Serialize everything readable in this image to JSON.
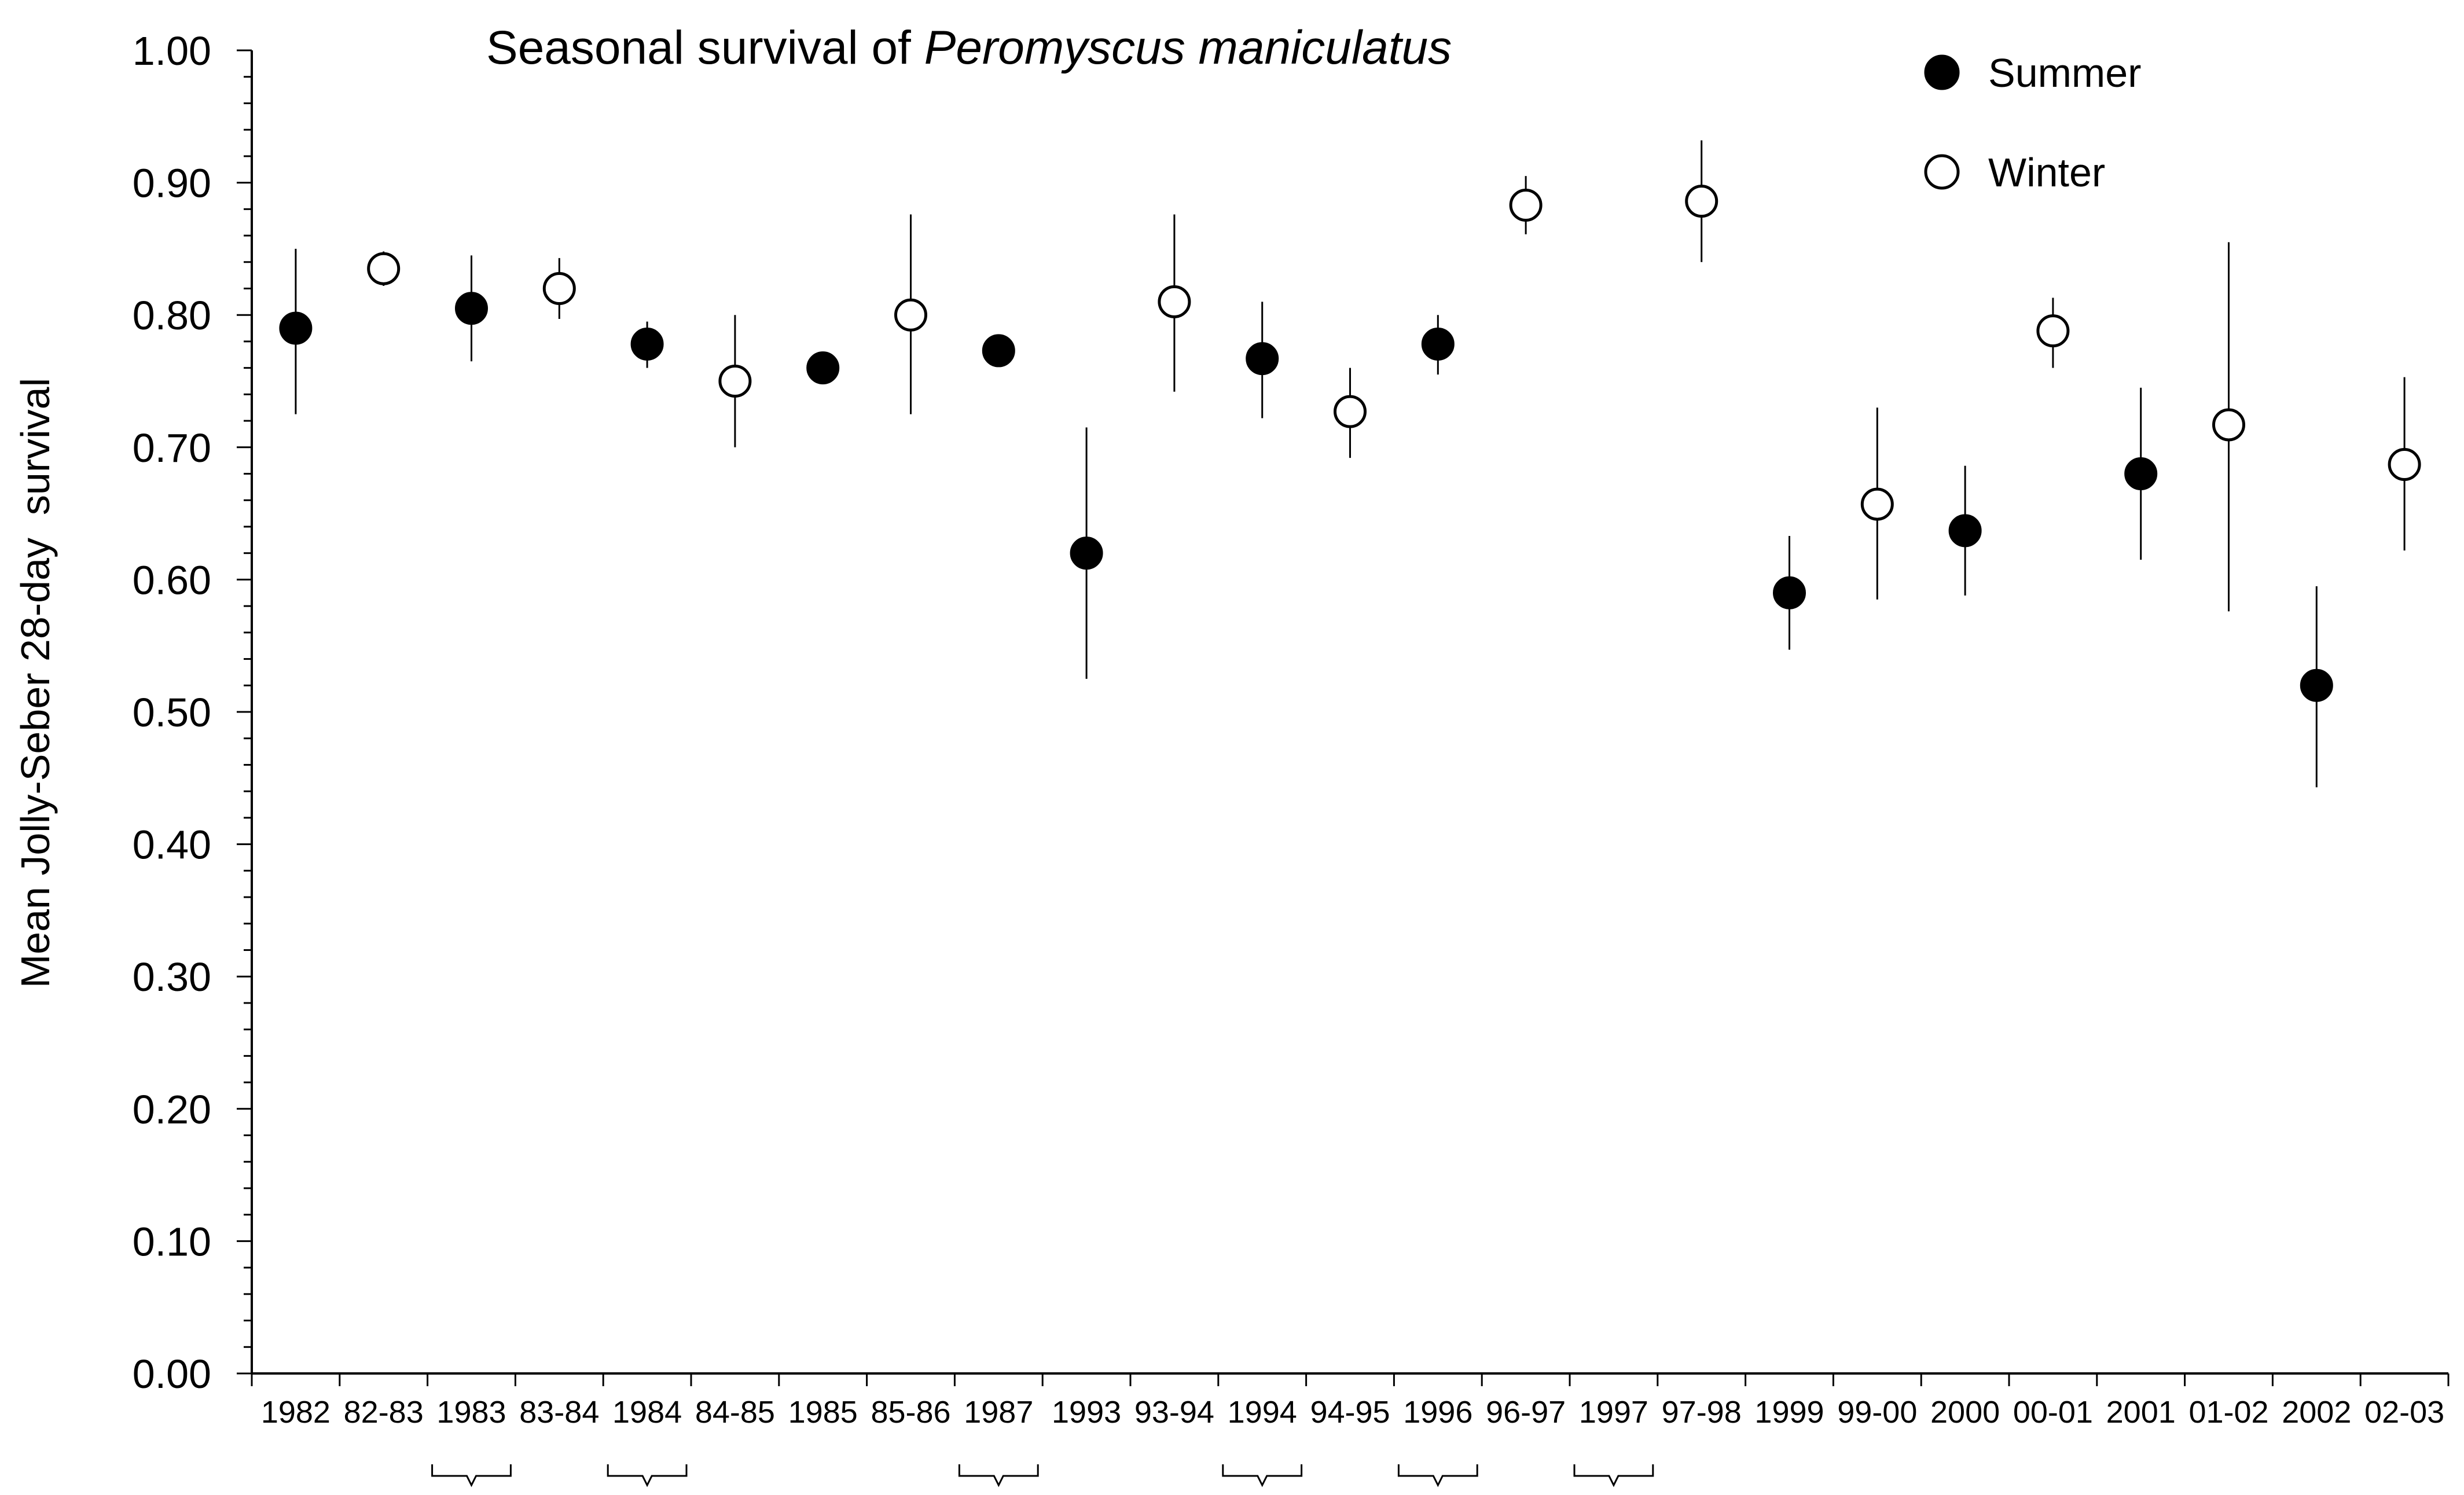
{
  "chart_data": {
    "type": "scatter",
    "title_prefix": "Seasonal survival of ",
    "title_italic": "Peromyscus maniculatus",
    "ylabel": "Mean Jolly-Seber 28-day  survival",
    "xlabel": "",
    "ylim": [
      0,
      1
    ],
    "y_ticks": [
      "0.00",
      "0.10",
      "0.20",
      "0.30",
      "0.40",
      "0.50",
      "0.60",
      "0.70",
      "0.80",
      "0.90",
      "1.00"
    ],
    "categories": [
      "1982",
      "82-83",
      "1983",
      "83-84",
      "1984",
      "84-85",
      "1985",
      "85-86",
      "1987",
      "1993",
      "93-94",
      "1994",
      "94-95",
      "1996",
      "96-97",
      "1997",
      "97-98",
      "1999",
      "99-00",
      "2000",
      "00-01",
      "2001",
      "01-02",
      "2002",
      "02-03"
    ],
    "legend": {
      "position": "top-right",
      "entries": [
        "Summer",
        "Winter"
      ]
    },
    "series": [
      {
        "name": "Summer",
        "marker": "filled-circle",
        "points": [
          {
            "category": "1982",
            "value": 0.79,
            "lower": 0.725,
            "upper": 0.85
          },
          {
            "category": "1983",
            "value": 0.805,
            "lower": 0.765,
            "upper": 0.845
          },
          {
            "category": "1984",
            "value": 0.778,
            "lower": 0.76,
            "upper": 0.795
          },
          {
            "category": "1985",
            "value": 0.76,
            "lower": 0.76,
            "upper": 0.76
          },
          {
            "category": "1987",
            "value": 0.773,
            "lower": 0.773,
            "upper": 0.773
          },
          {
            "category": "1993",
            "value": 0.62,
            "lower": 0.525,
            "upper": 0.715
          },
          {
            "category": "1994",
            "value": 0.767,
            "lower": 0.722,
            "upper": 0.81
          },
          {
            "category": "1996",
            "value": 0.778,
            "lower": 0.755,
            "upper": 0.8
          },
          {
            "category": "1999",
            "value": 0.59,
            "lower": 0.547,
            "upper": 0.633
          },
          {
            "category": "2000",
            "value": 0.637,
            "lower": 0.588,
            "upper": 0.686
          },
          {
            "category": "2001",
            "value": 0.68,
            "lower": 0.615,
            "upper": 0.745
          },
          {
            "category": "2002",
            "value": 0.52,
            "lower": 0.443,
            "upper": 0.595
          }
        ]
      },
      {
        "name": "Winter",
        "marker": "open-circle",
        "points": [
          {
            "category": "82-83",
            "value": 0.835,
            "lower": 0.822,
            "upper": 0.848
          },
          {
            "category": "83-84",
            "value": 0.82,
            "lower": 0.797,
            "upper": 0.843
          },
          {
            "category": "84-85",
            "value": 0.75,
            "lower": 0.7,
            "upper": 0.8
          },
          {
            "category": "85-86",
            "value": 0.8,
            "lower": 0.725,
            "upper": 0.876
          },
          {
            "category": "93-94",
            "value": 0.81,
            "lower": 0.742,
            "upper": 0.876
          },
          {
            "category": "94-95",
            "value": 0.727,
            "lower": 0.692,
            "upper": 0.76
          },
          {
            "category": "96-97",
            "value": 0.883,
            "lower": 0.861,
            "upper": 0.905
          },
          {
            "category": "97-98",
            "value": 0.886,
            "lower": 0.84,
            "upper": 0.932
          },
          {
            "category": "99-00",
            "value": 0.657,
            "lower": 0.585,
            "upper": 0.73
          },
          {
            "category": "00-01",
            "value": 0.788,
            "lower": 0.76,
            "upper": 0.813
          },
          {
            "category": "01-02",
            "value": 0.717,
            "lower": 0.576,
            "upper": 0.855
          },
          {
            "category": "02-03",
            "value": 0.687,
            "lower": 0.622,
            "upper": 0.753
          }
        ]
      }
    ],
    "brackets_under": [
      "1983",
      "1984",
      "1987",
      "1994",
      "1996",
      "1997"
    ]
  }
}
